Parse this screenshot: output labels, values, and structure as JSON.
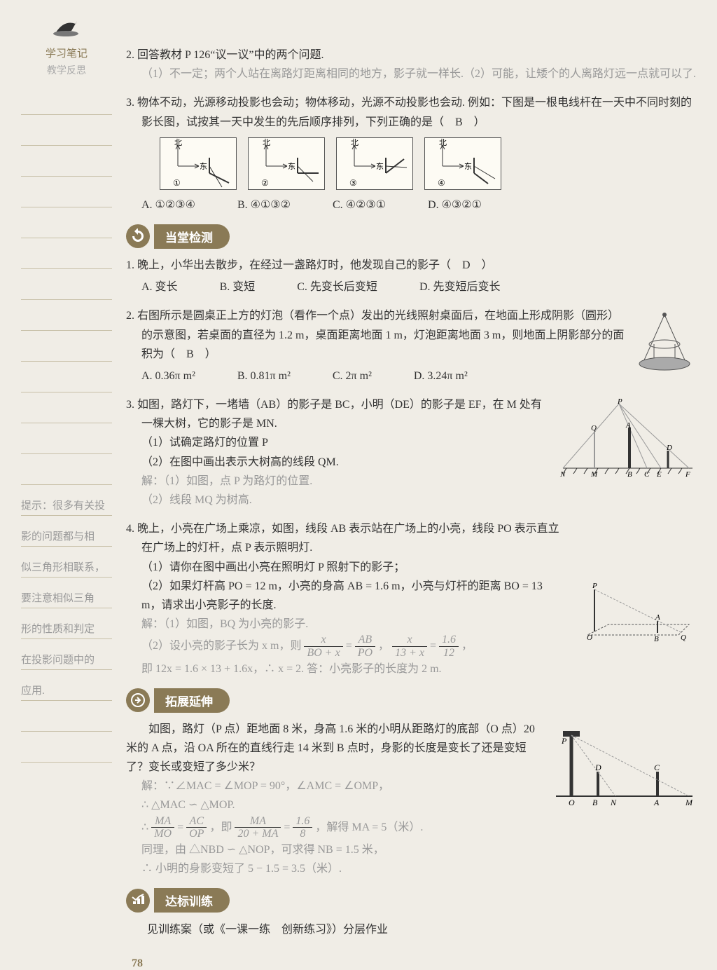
{
  "sidebar": {
    "title": "学习笔记",
    "subtitle": "教学反思",
    "notes": [
      "",
      "",
      "",
      "",
      "",
      "",
      "",
      "",
      "",
      "",
      "",
      "",
      "",
      "提示：很多有关投",
      "影的问题都与相",
      "似三角形相联系，",
      "要注意相似三角",
      "形的性质和判定",
      "在投影问题中的",
      "应用.",
      "",
      ""
    ]
  },
  "q2": {
    "num": "2.",
    "text": "回答教材 P 126“议一议”中的两个问题.",
    "ans": "（1）不一定；两个人站在离路灯距离相同的地方，影子就一样长.（2）可能，让矮个的人离路灯远一点就可以了."
  },
  "q3": {
    "num": "3.",
    "text": "物体不动，光源移动投影也会动；物体移动，光源不动投影也会动. 例如：下图是一根电线杆在一天中不同时刻的影长图，试按其一天中发生的先后顺序排列，下列正确的是（　B　）",
    "dias": [
      "①",
      "②",
      "③",
      "④"
    ],
    "optA": "A. ①②③④",
    "optB": "B. ④①③②",
    "optC": "C. ④②③①",
    "optD": "D. ④③②①"
  },
  "section1": "当堂检测",
  "t1": {
    "num": "1.",
    "text": "晚上，小华出去散步，在经过一盏路灯时，他发现自己的影子（　D　）",
    "optA": "A. 变长",
    "optB": "B. 变短",
    "optC": "C. 先变长后变短",
    "optD": "D. 先变短后变长"
  },
  "t2": {
    "num": "2.",
    "text": "右图所示是圆桌正上方的灯泡（看作一个点）发出的光线照射桌面后，在地面上形成阴影（圆形）的示意图，若桌面的直径为 1.2 m，桌面距离地面 1 m，灯泡距离地面 3 m，则地面上阴影部分的面积为（　B　）",
    "optA": "A. 0.36π m²",
    "optB": "B. 0.81π m²",
    "optC": "C. 2π m²",
    "optD": "D. 3.24π m²"
  },
  "t3": {
    "num": "3.",
    "text": "如图，路灯下，一堵墙（AB）的影子是 BC，小明（DE）的影子是 EF，在 M 处有一棵大树，它的影子是 MN.",
    "sub1": "（1）试确定路灯的位置 P",
    "sub2": "（2）在图中画出表示大树高的线段 QM.",
    "sol1": "解：（1）如图，点 P 为路灯的位置.",
    "sol2": "（2）线段 MQ 为树高."
  },
  "t4": {
    "num": "4.",
    "text": "晚上，小亮在广场上乘凉，如图，线段 AB 表示站在广场上的小亮，线段 PO 表示直立在广场上的灯杆，点 P 表示照明灯.",
    "sub1": "（1）请你在图中画出小亮在照明灯 P 照射下的影子；",
    "sub2": "（2）如果灯杆高 PO = 12 m，小亮的身高 AB = 1.6 m，小亮与灯杆的距离 BO = 13 m，请求出小亮影子的长度.",
    "sol1": "解：（1）如图，BQ 为小亮的影子.",
    "sol2a": "（2）设小亮的影子长为 x m，则 ",
    "sol2b": "即 12x = 1.6 × 13 + 1.6x，∴ x = 2. 答：小亮影子的长度为 2 m.",
    "frac_x": "x",
    "frac_box": "BO + x",
    "frac_ab": "AB",
    "frac_po": "PO",
    "frac_13x": "13 + x",
    "frac_16": "1.6",
    "frac_12": "12"
  },
  "section2": "拓展延伸",
  "ext": {
    "text": "　　如图，路灯（P 点）距地面 8 米，身高 1.6 米的小明从距路灯的底部（O 点）20 米的 A 点，沿 OA 所在的直线行走 14 米到 B 点时，身影的长度是变长了还是变短了？变长或变短了多少米？",
    "sol1": "解：∵∠MAC = ∠MOP = 90°，∠AMC = ∠OMP，",
    "sol2": "∴ △MAC ∽ △MOP.",
    "sol3a": "∴ ",
    "frac_ma": "MA",
    "frac_mo": "MO",
    "frac_ac": "AC",
    "frac_op": "OP",
    "frac_20ma": "20 + MA",
    "frac_e16": "1.6",
    "frac_8": "8",
    "sol3b": "，解得 MA = 5（米）.",
    "sol4": "同理，由 △NBD ∽ △NOP，可求得 NB = 1.5 米，",
    "sol5": "∴ 小明的身影变短了 5 − 1.5 = 3.5（米）."
  },
  "section3": "达标训练",
  "final": "见训练案（或《一课一练　创新练习》）分层作业",
  "pagenum": "78",
  "dia_labels": {
    "north": "北",
    "east": "东"
  }
}
